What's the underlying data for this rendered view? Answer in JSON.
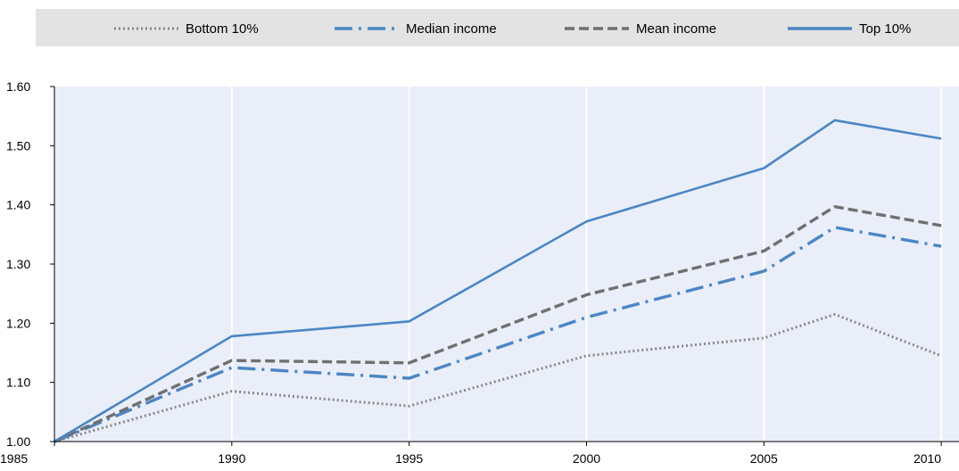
{
  "chart_data": {
    "type": "line",
    "title": "",
    "xlabel": "",
    "ylabel": "",
    "x": [
      1985,
      1990,
      1995,
      2000,
      2005,
      2007,
      2010
    ],
    "x_ticks": [
      "1985",
      "1990",
      "1995",
      "2000",
      "2005",
      "2010"
    ],
    "y_ticks": [
      "1.00",
      "1.10",
      "1.20",
      "1.30",
      "1.40",
      "1.50",
      "1.60"
    ],
    "xlim": [
      1985,
      2010.5
    ],
    "ylim": [
      1.0,
      1.6
    ],
    "grid": "vertical",
    "legend_position": "top",
    "series": [
      {
        "name": "Bottom 10%",
        "style": "dotted",
        "color": "#888888",
        "values": [
          1.0,
          1.085,
          1.06,
          1.145,
          1.175,
          1.215,
          1.145
        ]
      },
      {
        "name": "Median income",
        "style": "dashdot",
        "color": "#4a86c5",
        "values": [
          1.0,
          1.125,
          1.107,
          1.21,
          1.288,
          1.362,
          1.33
        ]
      },
      {
        "name": "Mean income",
        "style": "dashed",
        "color": "#707070",
        "values": [
          1.0,
          1.137,
          1.133,
          1.248,
          1.322,
          1.397,
          1.365
        ]
      },
      {
        "name": "Top 10%",
        "style": "solid",
        "color": "#4a86c5",
        "values": [
          1.0,
          1.178,
          1.203,
          1.372,
          1.462,
          1.543,
          1.512
        ]
      }
    ],
    "colors": {
      "plot_bg": "#e9eef8",
      "legend_bg": "#e3e3e3",
      "grid": "#ffffff",
      "axis": "#000000"
    }
  }
}
